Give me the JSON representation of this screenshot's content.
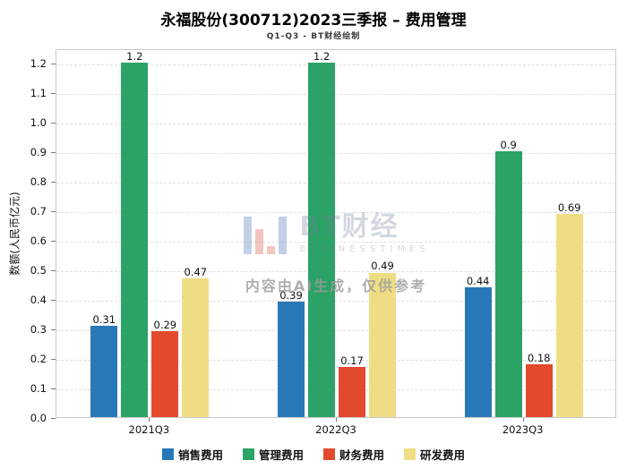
{
  "header": {
    "title": "永福股份(300712)2023三季报 – 费用管理",
    "subtitle": "Q1-Q3 - BT财经绘制"
  },
  "chart_data": {
    "type": "bar",
    "title": "永福股份(300712)2023三季报 – 费用管理",
    "subtitle": "Q1-Q3 - BT财经绘制",
    "xlabel": "",
    "ylabel": "数额(人民币亿元)",
    "ylim": [
      0,
      1.25
    ],
    "yticks": [
      0,
      0.1,
      0.2,
      0.3,
      0.4,
      0.5,
      0.6,
      0.7,
      0.8,
      0.9,
      1.0,
      1.1,
      1.2
    ],
    "grid": true,
    "legend_position": "bottom",
    "categories": [
      "2021Q3",
      "2022Q3",
      "2023Q3"
    ],
    "series": [
      {
        "name": "销售费用",
        "color": "#2979B8",
        "values": [
          0.31,
          0.39,
          0.44
        ]
      },
      {
        "name": "管理费用",
        "color": "#2BA266",
        "values": [
          1.2,
          1.2,
          0.9
        ]
      },
      {
        "name": "财务费用",
        "color": "#E3492D",
        "values": [
          0.29,
          0.17,
          0.18
        ]
      },
      {
        "name": "研发费用",
        "color": "#EFDD85",
        "values": [
          0.47,
          0.49,
          0.69
        ]
      }
    ]
  },
  "watermark": {
    "brand": "BT财经",
    "brand_sub": "BUSINESSTIMES",
    "disclaimer": "内容由AI生成，仅供参考"
  }
}
